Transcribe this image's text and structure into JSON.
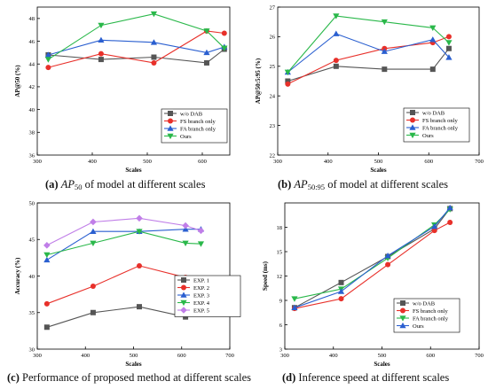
{
  "captions": [
    {
      "letter": "(a)",
      "math": "AP",
      "sub": "50",
      "rest": "of model at different scales"
    },
    {
      "letter": "(b)",
      "math": "AP",
      "sub": "50:95",
      "rest": "of model at different scales"
    },
    {
      "letter": "(c)",
      "math": "",
      "sub": "",
      "rest": "Performance of proposed method at different scales"
    },
    {
      "letter": "(d)",
      "math": "",
      "sub": "",
      "rest": "Inference speed at different scales"
    }
  ],
  "chart_data": [
    {
      "type": "line",
      "xlabel": "Scales",
      "ylabel": "AP@50 (%)",
      "xlim": [
        300,
        650
      ],
      "xticks": [
        300,
        400,
        500,
        600
      ],
      "ylim": [
        36,
        49
      ],
      "yticks": [
        36,
        38,
        40,
        42,
        44,
        46,
        48
      ],
      "legend": "right",
      "x": [
        320,
        416,
        512,
        608,
        640
      ],
      "series": [
        {
          "name": "w/o DAB",
          "color": "#555555",
          "marker": "square",
          "values": [
            44.8,
            44.4,
            44.6,
            44.1,
            45.3
          ]
        },
        {
          "name": "FS branch only",
          "color": "#e8302a",
          "marker": "circle",
          "values": [
            43.7,
            44.9,
            44.1,
            46.9,
            46.7
          ]
        },
        {
          "name": "FA branch only",
          "color": "#2a5fd0",
          "marker": "triangle",
          "values": [
            44.8,
            46.1,
            45.9,
            45.0,
            45.5
          ]
        },
        {
          "name": "Ours",
          "color": "#2ab84a",
          "marker": "triangle-down",
          "values": [
            44.4,
            47.4,
            48.4,
            46.9,
            45.4
          ]
        }
      ]
    },
    {
      "type": "line",
      "xlabel": "Scales",
      "ylabel": "AP@50:5:95 (%)",
      "xlim": [
        300,
        700
      ],
      "xticks": [
        300,
        400,
        500,
        600,
        700
      ],
      "ylim": [
        22,
        27
      ],
      "yticks": [
        22,
        23,
        24,
        25,
        26,
        27
      ],
      "legend": "right",
      "x": [
        320,
        416,
        512,
        608,
        640
      ],
      "series": [
        {
          "name": "w/o DAB",
          "color": "#555555",
          "marker": "square",
          "values": [
            24.5,
            25.0,
            24.9,
            24.9,
            25.6
          ]
        },
        {
          "name": "FS branch only",
          "color": "#e8302a",
          "marker": "circle",
          "values": [
            24.4,
            25.2,
            25.6,
            25.8,
            26.0
          ]
        },
        {
          "name": "FA branch only",
          "color": "#2a5fd0",
          "marker": "triangle",
          "values": [
            24.8,
            26.1,
            25.5,
            25.9,
            25.3
          ]
        },
        {
          "name": "Ours",
          "color": "#2ab84a",
          "marker": "triangle-down",
          "values": [
            24.8,
            26.7,
            26.5,
            26.3,
            25.8
          ]
        }
      ]
    },
    {
      "type": "line",
      "xlabel": "Scales",
      "ylabel": "Accuracy (%)",
      "xlim": [
        300,
        700
      ],
      "xticks": [
        300,
        400,
        500,
        600,
        700
      ],
      "ylim": [
        30,
        50
      ],
      "yticks": [
        30,
        35,
        40,
        45,
        50
      ],
      "legend": "right",
      "x": [
        320,
        416,
        512,
        608,
        640
      ],
      "series": [
        {
          "name": "EXP. 1",
          "color": "#555555",
          "marker": "square",
          "values": [
            33.0,
            35.0,
            35.8,
            34.4,
            35.1
          ]
        },
        {
          "name": "EXP. 2",
          "color": "#e8302a",
          "marker": "circle",
          "values": [
            36.2,
            38.6,
            41.4,
            39.8,
            38.7
          ]
        },
        {
          "name": "EXP. 3",
          "color": "#2a5fd0",
          "marker": "triangle",
          "values": [
            42.2,
            46.1,
            46.1,
            46.4,
            46.4
          ]
        },
        {
          "name": "EXP. 4",
          "color": "#2ab84a",
          "marker": "triangle-down",
          "values": [
            42.9,
            44.5,
            46.1,
            44.5,
            44.4
          ]
        },
        {
          "name": "EXP. 5",
          "color": "#c07ee8",
          "marker": "diamond",
          "values": [
            44.2,
            47.4,
            47.9,
            46.9,
            46.2
          ]
        }
      ]
    },
    {
      "type": "line",
      "xlabel": "Scales",
      "ylabel": "Speed (ms)",
      "xlim": [
        300,
        700
      ],
      "xticks": [
        300,
        400,
        500,
        600,
        700
      ],
      "ylim": [
        3,
        21
      ],
      "yticks": [
        3,
        6,
        9,
        12,
        15,
        18
      ],
      "legend": "right",
      "x": [
        320,
        416,
        512,
        608,
        640
      ],
      "series": [
        {
          "name": "w/o DAB",
          "color": "#555555",
          "marker": "square",
          "values": [
            8.1,
            11.2,
            14.4,
            17.8,
            20.3
          ]
        },
        {
          "name": "FS branch only",
          "color": "#e8302a",
          "marker": "circle",
          "values": [
            8.0,
            9.2,
            13.4,
            17.6,
            18.6
          ]
        },
        {
          "name": "FA branch only",
          "color": "#2ab84a",
          "marker": "triangle-down",
          "values": [
            9.2,
            10.4,
            14.2,
            18.3,
            20.2
          ]
        },
        {
          "name": "Ours",
          "color": "#2a5fd0",
          "marker": "triangle",
          "values": [
            8.1,
            10.1,
            14.5,
            18.1,
            20.4
          ]
        }
      ]
    }
  ]
}
